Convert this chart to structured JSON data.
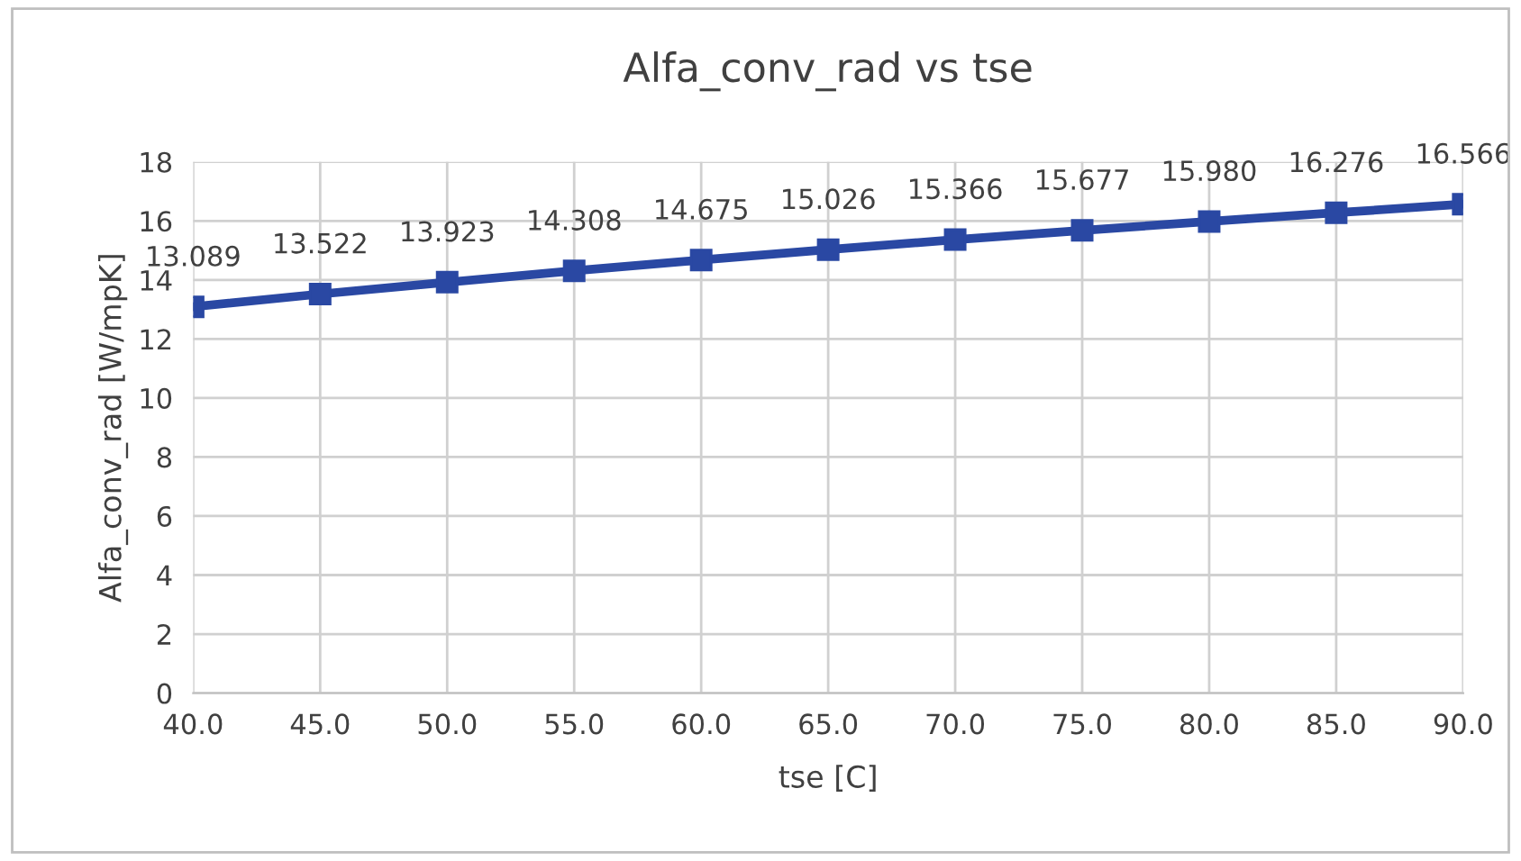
{
  "chart_data": {
    "type": "line",
    "title": "Alfa_conv_rad vs tse",
    "xlabel": "tse [C]",
    "ylabel": "Alfa_conv_rad [W/mpK]",
    "x": [
      40,
      45,
      50,
      55,
      60,
      65,
      70,
      75,
      80,
      85,
      90
    ],
    "series": [
      {
        "color": "#2a48a3",
        "values": [
          13.089,
          13.522,
          13.923,
          14.308,
          14.675,
          15.026,
          15.366,
          15.677,
          15.98,
          16.276,
          16.566
        ],
        "value_labels": [
          "13.089",
          "13.522",
          "13.923",
          "14.308",
          "14.675",
          "15.026",
          "15.366",
          "15.677",
          "15.980",
          "16.276",
          "16.566"
        ]
      }
    ],
    "xlim": [
      40,
      90
    ],
    "xticks": [
      {
        "value": 40,
        "label": "40.0"
      },
      {
        "value": 45,
        "label": "45.0"
      },
      {
        "value": 50,
        "label": "50.0"
      },
      {
        "value": 55,
        "label": "55.0"
      },
      {
        "value": 60,
        "label": "60.0"
      },
      {
        "value": 65,
        "label": "65.0"
      },
      {
        "value": 70,
        "label": "70.0"
      },
      {
        "value": 75,
        "label": "75.0"
      },
      {
        "value": 80,
        "label": "80.0"
      },
      {
        "value": 85,
        "label": "85.0"
      },
      {
        "value": 90,
        "label": "90.0"
      }
    ],
    "ylim": [
      0,
      18
    ],
    "yticks": [
      0,
      2,
      4,
      6,
      8,
      10,
      12,
      14,
      16,
      18
    ],
    "grid": true,
    "marker": "square",
    "line_style": "solid"
  }
}
